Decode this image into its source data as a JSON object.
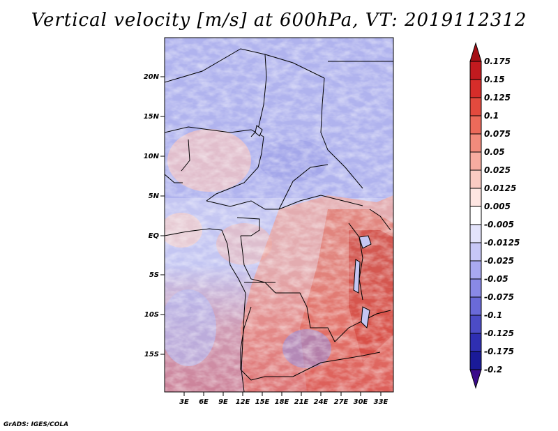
{
  "title": "Vertical velocity [m/s] at 600hPa, VT: 2019112312",
  "credit": "GrADS: IGES/COLA",
  "map": {
    "lat_ticks": [
      "20N",
      "15N",
      "10N",
      "5N",
      "EQ",
      "5S",
      "10S",
      "15S"
    ],
    "lon_ticks": [
      "3E",
      "6E",
      "9E",
      "12E",
      "15E",
      "18E",
      "21E",
      "24E",
      "27E",
      "30E",
      "33E"
    ]
  },
  "colorbar": {
    "labels": [
      "0.175",
      "0.15",
      "0.125",
      "0.1",
      "0.075",
      "0.05",
      "0.025",
      "0.0125",
      "0.005",
      "-0.005",
      "-0.0125",
      "-0.025",
      "-0.05",
      "-0.075",
      "-0.1",
      "-0.125",
      "-0.175",
      "-0.2"
    ],
    "colors": [
      "#a50f15",
      "#c21a1f",
      "#d62d2a",
      "#e34a3e",
      "#ec6a5a",
      "#f28b7c",
      "#f7aca0",
      "#fbcbc3",
      "#fee6e2",
      "#ffffff",
      "#e3e3fb",
      "#c7c7f7",
      "#a9a9f0",
      "#8989e6",
      "#6a6ad8",
      "#4c4cc6",
      "#2f2fb2",
      "#1a1a98",
      "#3a0a8a"
    ]
  }
}
